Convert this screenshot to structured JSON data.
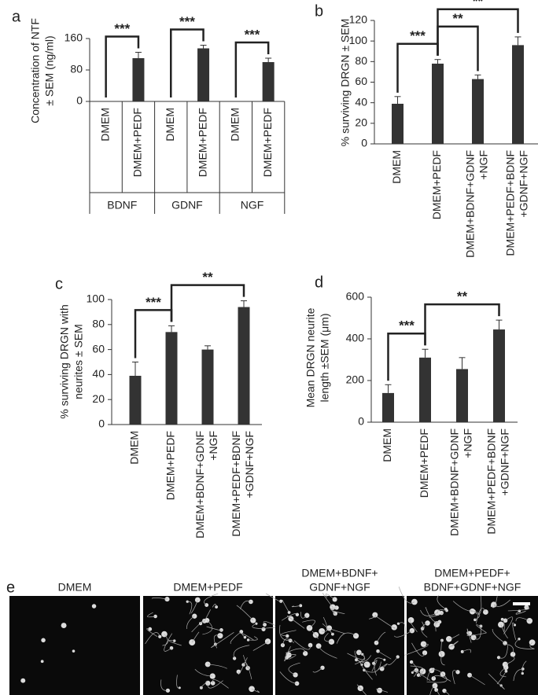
{
  "chart_data": [
    {
      "type": "bar",
      "panel": "a",
      "ylabel": [
        "Concentration of NTF",
        "± SEM (ng/ml)"
      ],
      "categories": [
        [
          "DMEM"
        ],
        [
          "DMEM+PEDF"
        ],
        [
          "DMEM"
        ],
        [
          "DMEM+PEDF"
        ],
        [
          "DMEM"
        ],
        [
          "DMEM+PEDF"
        ]
      ],
      "groups": [
        "BDNF",
        "GDNF",
        "NGF"
      ],
      "values": [
        0,
        110,
        0,
        135,
        0,
        100
      ],
      "errors": [
        null,
        15,
        null,
        8,
        null,
        10
      ],
      "color": "#333333",
      "ylim": [
        0,
        160
      ],
      "yticks": [
        0,
        80,
        160
      ],
      "significance": [
        {
          "from": 0,
          "to": 1,
          "label": "***"
        },
        {
          "from": 2,
          "to": 3,
          "label": "***"
        },
        {
          "from": 4,
          "to": 5,
          "label": "***"
        }
      ]
    },
    {
      "type": "bar",
      "panel": "b",
      "ylabel": [
        "% surviving DRGN ± SEM"
      ],
      "categories": [
        [
          "DMEM"
        ],
        [
          "DMEM+PEDF"
        ],
        [
          "DMEM+BDNF+GDNF",
          "+NGF"
        ],
        [
          "DMEM+PEDF+BDNF",
          "+GDNF+NGF"
        ]
      ],
      "values": [
        39,
        78,
        63,
        96
      ],
      "errors": [
        7,
        4,
        4,
        8
      ],
      "color": "#333333",
      "ylim": [
        0,
        120
      ],
      "yticks": [
        0,
        20,
        40,
        60,
        80,
        100,
        120
      ],
      "significance": [
        {
          "from": 0,
          "to": 1,
          "label": "***"
        },
        {
          "from": 1,
          "to": 2,
          "label": "**"
        },
        {
          "from": 1,
          "to": 3,
          "label": "**"
        }
      ]
    },
    {
      "type": "bar",
      "panel": "c",
      "ylabel": [
        "% surviving DRGN with",
        "neurites ± SEM"
      ],
      "categories": [
        [
          "DMEM"
        ],
        [
          "DMEM+PEDF"
        ],
        [
          "DMEM+BDNF+GDNF",
          "+NGF"
        ],
        [
          "DMEM+PEDF+BDNF",
          "+GDNF+NGF"
        ]
      ],
      "values": [
        39,
        74,
        60,
        94
      ],
      "errors": [
        11,
        5,
        3,
        5
      ],
      "color": "#333333",
      "ylim": [
        0,
        100
      ],
      "yticks": [
        0,
        20,
        40,
        60,
        80,
        100
      ],
      "significance": [
        {
          "from": 0,
          "to": 1,
          "label": "***"
        },
        {
          "from": 1,
          "to": 3,
          "label": "**"
        }
      ]
    },
    {
      "type": "bar",
      "panel": "d",
      "ylabel": [
        "Mean DRGN neurite",
        "length ±SEM (μm)"
      ],
      "categories": [
        [
          "DMEM"
        ],
        [
          "DMEM+PEDF"
        ],
        [
          "DMEM+BDNF+GDNF",
          "+NGF"
        ],
        [
          "DMEM+PEDF+BDNF",
          "+GDNF+NGF"
        ]
      ],
      "values": [
        140,
        310,
        255,
        445
      ],
      "errors": [
        40,
        40,
        55,
        45
      ],
      "color": "#333333",
      "ylim": [
        0,
        600
      ],
      "yticks": [
        0,
        200,
        400,
        600
      ],
      "significance": [
        {
          "from": 0,
          "to": 1,
          "label": "***"
        },
        {
          "from": 1,
          "to": 3,
          "label": "**"
        }
      ]
    }
  ],
  "image_panel": {
    "panel": "e",
    "images": [
      {
        "label": [
          "DMEM"
        ]
      },
      {
        "label": [
          "DMEM+PEDF"
        ]
      },
      {
        "label": [
          "DMEM+BDNF+",
          "GDNF+NGF"
        ]
      },
      {
        "label": [
          "DMEM+PEDF+",
          "BDNF+GDNF+NGF"
        ]
      }
    ]
  }
}
